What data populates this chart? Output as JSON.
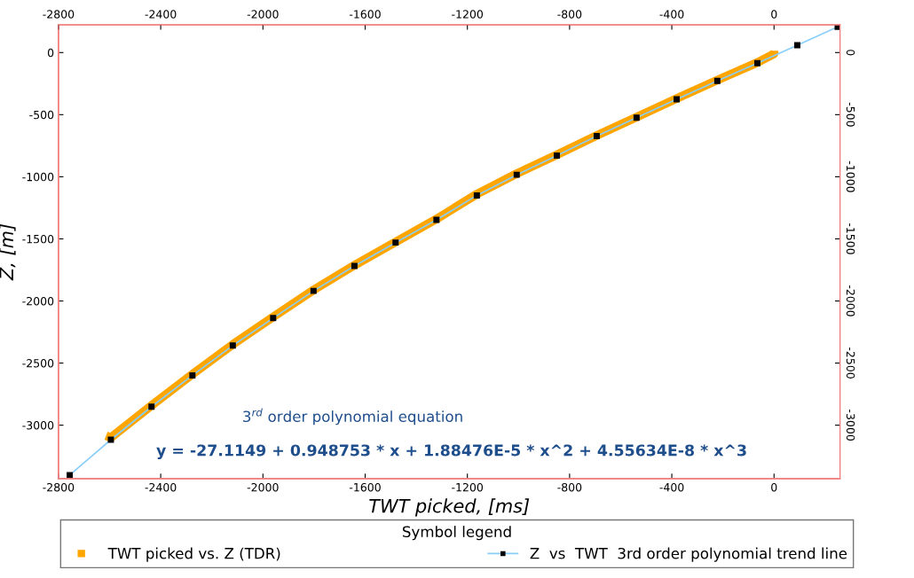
{
  "chart_data": {
    "type": "line",
    "xlabel": "TWT picked, [ms]",
    "ylabel": "Z, [m]",
    "legend_title": "Symbol legend",
    "xlim": [
      -2800,
      258
    ],
    "xticks": [
      -2800,
      -2400,
      -2000,
      -1600,
      -1200,
      -800,
      -400,
      0
    ],
    "x2lim": [
      -2800,
      258
    ],
    "x2ticks": [
      -2800,
      -2400,
      -2000,
      -1600,
      -1200,
      -800,
      -400,
      0
    ],
    "ylim": [
      -3430,
      223
    ],
    "yticks": [
      -3000,
      -2500,
      -2000,
      -1500,
      -1000,
      -500,
      0
    ],
    "y2lim": [
      -3430,
      223
    ],
    "y2ticks": [
      -3000,
      -2500,
      -2000,
      -1500,
      -1000,
      -500,
      0
    ],
    "grid": false,
    "legend": "bottom",
    "series": [
      {
        "name": "TWT picked vs. Z (TDR)",
        "color": "#ffa500",
        "marker": "none",
        "line_style": "solid",
        "x": [
          0,
          0,
          -65,
          -222,
          -381,
          -538,
          -694,
          -850,
          -1007,
          -1163,
          -1321,
          -1481,
          -1642,
          -1802,
          -1960,
          -2118,
          -2276,
          -2436,
          -2595,
          -2614
        ],
        "values": [
          15,
          -10,
          -80,
          -222,
          -370,
          -520,
          -668,
          -823,
          -975,
          -1140,
          -1340,
          -1525,
          -1712,
          -1912,
          -2128,
          -2350,
          -2590,
          -2842,
          -3100,
          -3085
        ]
      },
      {
        "name": "Z  vs  TWT  3rd order polynomial trend line",
        "color": "#87cefa",
        "marker": "square",
        "line_style": "solid",
        "x": [
          249,
          91,
          -65,
          -222,
          -381,
          -538,
          -694,
          -850,
          -1007,
          -1163,
          -1321,
          -1481,
          -1642,
          -1802,
          -1960,
          -2118,
          -2276,
          -2436,
          -2595,
          -2756
        ],
        "values": [
          207,
          59,
          -86,
          -228,
          -376,
          -525,
          -672,
          -829,
          -984,
          -1150,
          -1347,
          -1530,
          -1718,
          -1919,
          -2138,
          -2359,
          -2599,
          -2851,
          -3117,
          -3402
        ]
      }
    ],
    "annotations": [
      {
        "text": "3$^{rd}$ order polynomial equation"
      },
      {
        "text": "y = -27.1149 + 0.948753 * x + 1.88476E-5 * x^2 + 4.55634E-8 * x^3"
      }
    ]
  }
}
